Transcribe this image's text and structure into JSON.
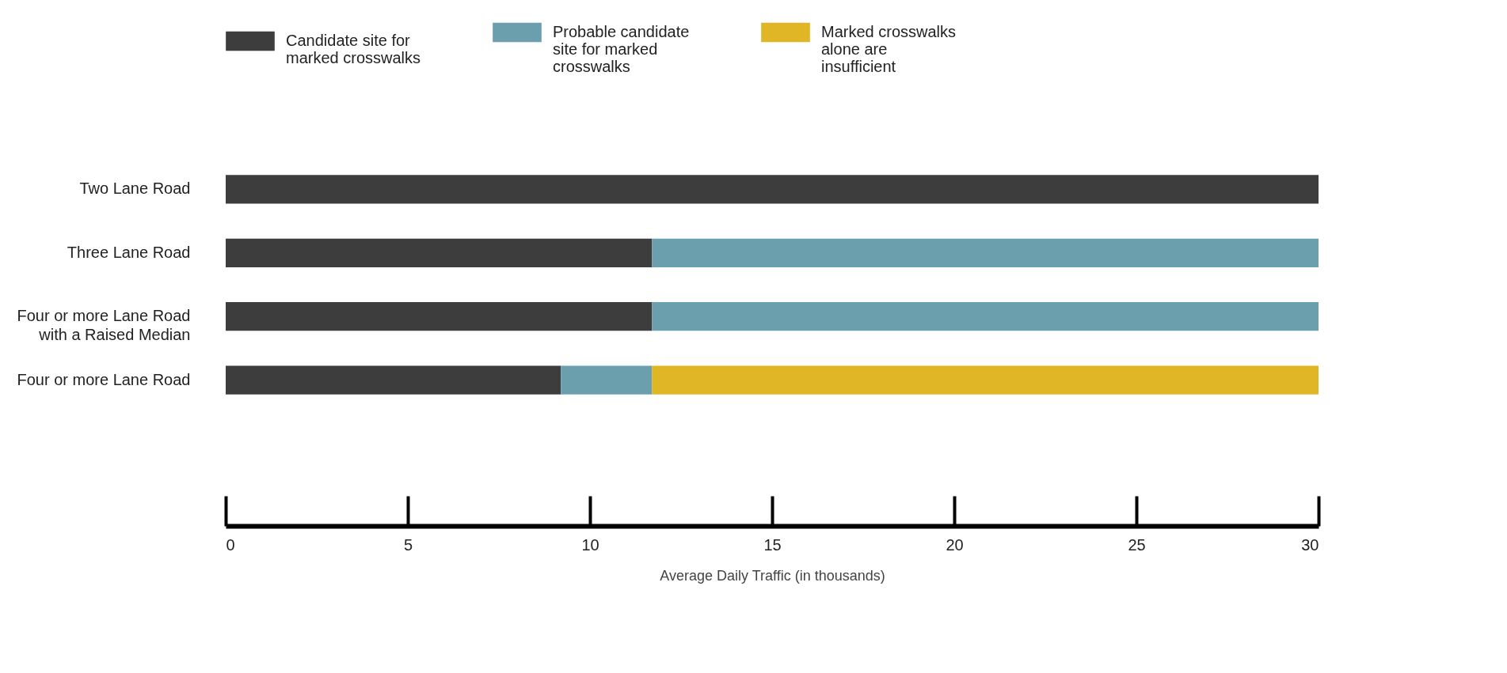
{
  "chart_data": {
    "type": "bar",
    "orientation": "horizontal",
    "stacked": true,
    "legend": "top",
    "grid": false,
    "categories": [
      "Two Lane Road",
      "Three Lane Road",
      "Four or more Lane Road with a Raised Median",
      "Four or more Lane Road"
    ],
    "series": [
      {
        "name": "Candidate site for marked crosswalks",
        "color": "#3d3d3d",
        "values": [
          30,
          11.7,
          11.7,
          9.2
        ]
      },
      {
        "name": "Probable candidate site for marked crosswalks",
        "color": "#6b9fae",
        "values": [
          null,
          18.3,
          18.3,
          2.5
        ]
      },
      {
        "name": "Marked crosswalks alone are insufficient",
        "color": "#e0b526",
        "values": [
          null,
          null,
          null,
          18.3
        ]
      }
    ],
    "xlim": [
      0,
      30
    ],
    "xticks": [
      0,
      5,
      10,
      15,
      20,
      25,
      30
    ],
    "xlabel": "Average Daily Traffic (in thousands)"
  }
}
